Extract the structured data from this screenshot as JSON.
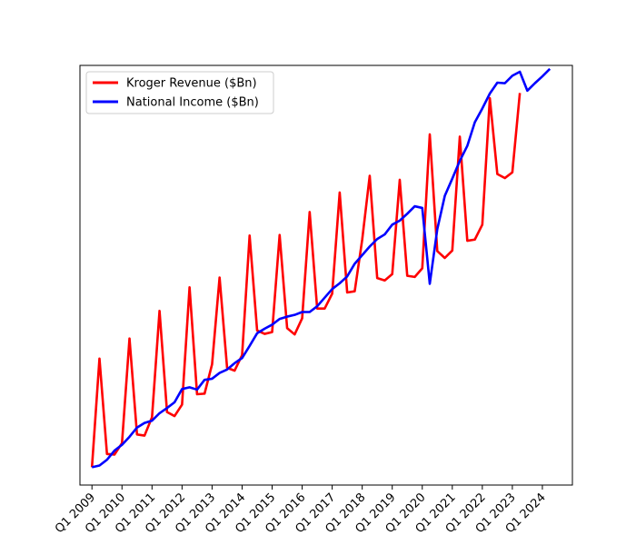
{
  "chart_data": {
    "type": "line",
    "title": "",
    "xlabel": "",
    "ylabel": "",
    "y_axis_labels_shown": false,
    "legend_placement": "upper-left",
    "grid": false,
    "x_ticks": [
      "Q1 2009",
      "Q1 2010",
      "Q1 2011",
      "Q1 2012",
      "Q1 2013",
      "Q1 2014",
      "Q1 2015",
      "Q1 2016",
      "Q1 2017",
      "Q1 2018",
      "Q1 2019",
      "Q1 2020",
      "Q1 2021",
      "Q1 2022",
      "Q1 2023",
      "Q1 2024"
    ],
    "xlim": [
      2008.6,
      2025.0
    ],
    "series": [
      {
        "name": "Kroger Revenue ($Bn)",
        "color": "#ff0000",
        "x": [
          2009.0,
          2009.25,
          2009.5,
          2009.75,
          2010.0,
          2010.25,
          2010.5,
          2010.75,
          2011.0,
          2011.25,
          2011.5,
          2011.75,
          2012.0,
          2012.25,
          2012.5,
          2012.75,
          2013.0,
          2013.25,
          2013.5,
          2013.75,
          2014.0,
          2014.25,
          2014.5,
          2014.75,
          2015.0,
          2015.25,
          2015.5,
          2015.75,
          2016.0,
          2016.25,
          2016.5,
          2016.75,
          2017.0,
          2017.25,
          2017.5,
          2017.75,
          2018.0,
          2018.25,
          2018.5,
          2018.75,
          2019.0,
          2019.25,
          2019.5,
          2019.75,
          2020.0,
          2020.25,
          2020.5,
          2020.75,
          2021.0,
          2021.25,
          2021.5,
          2021.75,
          2022.0,
          2022.25,
          2022.5,
          2022.75,
          2023.0,
          2023.25
        ],
        "y": [
          3.1,
          22.0,
          5.4,
          5.3,
          7.3,
          25.5,
          8.8,
          8.6,
          11.8,
          30.3,
          12.7,
          12.0,
          14.0,
          34.4,
          15.8,
          15.9,
          21.0,
          36.1,
          20.4,
          19.9,
          22.6,
          43.4,
          26.9,
          26.3,
          26.6,
          43.5,
          27.3,
          26.2,
          29.0,
          47.5,
          30.7,
          30.7,
          33.3,
          50.9,
          33.5,
          33.7,
          42.7,
          53.8,
          36.0,
          35.6,
          36.7,
          53.1,
          36.4,
          36.2,
          37.7,
          61.0,
          40.7,
          39.5,
          40.8,
          60.6,
          42.5,
          42.7,
          45.3,
          67.3,
          54.1,
          53.4,
          54.4,
          68.2
        ]
      },
      {
        "name": "National Income ($Bn)",
        "color": "#0000ff",
        "x": [
          2009.0,
          2009.25,
          2009.5,
          2009.75,
          2010.0,
          2010.25,
          2010.5,
          2010.75,
          2011.0,
          2011.25,
          2011.5,
          2011.75,
          2012.0,
          2012.25,
          2012.5,
          2012.75,
          2013.0,
          2013.25,
          2013.5,
          2013.75,
          2014.0,
          2014.25,
          2014.5,
          2014.75,
          2015.0,
          2015.25,
          2015.5,
          2015.75,
          2016.0,
          2016.25,
          2016.5,
          2016.75,
          2017.0,
          2017.25,
          2017.5,
          2017.75,
          2018.0,
          2018.25,
          2018.5,
          2018.75,
          2019.0,
          2019.25,
          2019.5,
          2019.75,
          2020.0,
          2020.25,
          2020.5,
          2020.75,
          2021.0,
          2021.25,
          2021.5,
          2021.75,
          2022.0,
          2022.25,
          2022.5,
          2022.75,
          2023.0,
          2023.25,
          2023.5,
          2023.75,
          2024.0,
          2024.25
        ],
        "y": [
          3.1,
          3.4,
          4.4,
          6.0,
          7.0,
          8.4,
          10.0,
          10.8,
          11.2,
          12.5,
          13.4,
          14.4,
          16.7,
          17.0,
          16.6,
          18.3,
          18.5,
          19.5,
          20.1,
          21.2,
          22.1,
          24.2,
          26.4,
          27.2,
          27.9,
          28.9,
          29.3,
          29.6,
          30.1,
          30.1,
          31.1,
          32.6,
          34.1,
          35.1,
          36.3,
          38.5,
          40.0,
          41.5,
          42.8,
          43.6,
          45.3,
          46.0,
          47.2,
          48.5,
          48.2,
          35.0,
          44.5,
          50.3,
          53.3,
          56.4,
          59.0,
          63.1,
          65.5,
          68.1,
          70.0,
          69.9,
          71.2,
          71.9,
          68.6,
          69.9,
          71.1,
          72.4
        ]
      }
    ],
    "ylim": [
      0,
      73
    ]
  }
}
